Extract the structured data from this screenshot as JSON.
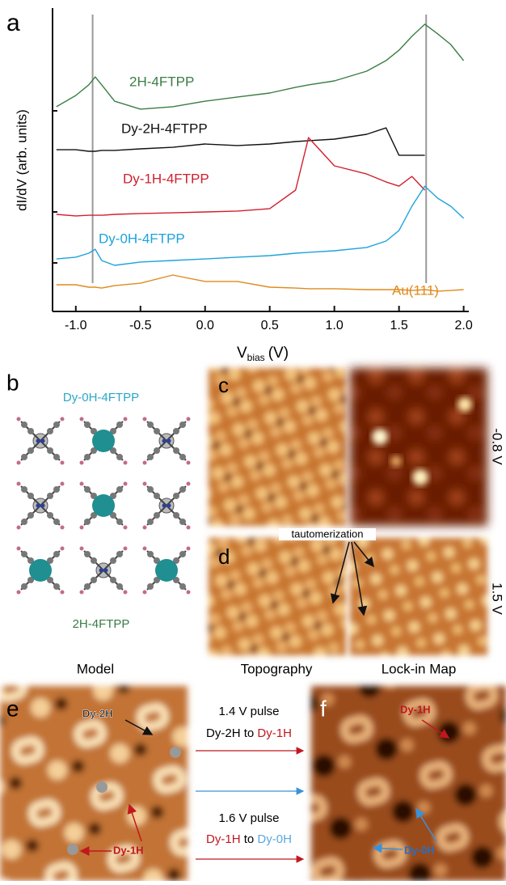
{
  "chart_data": {
    "type": "line",
    "panel": "a",
    "ylabel": "dI/dV (arb. units)",
    "xlabel": {
      "symbol": "V",
      "subscript": "bias",
      "unit": "(V)"
    },
    "x": [
      -1.15,
      -1.0,
      -0.9,
      -0.85,
      -0.8,
      -0.7,
      -0.5,
      -0.25,
      0,
      0.25,
      0.5,
      0.7,
      0.8,
      1.0,
      1.25,
      1.4,
      1.5,
      1.6,
      1.7,
      1.8,
      1.9,
      2.0
    ],
    "series": [
      {
        "name": "2H-4FTPP",
        "color": "#3a7d44",
        "values": [
          6.75,
          7.12,
          7.47,
          7.73,
          7.47,
          6.93,
          6.67,
          6.75,
          6.93,
          7.07,
          7.2,
          7.39,
          7.47,
          7.6,
          7.92,
          8.27,
          8.61,
          9.07,
          9.47,
          9.15,
          8.8,
          8.27
        ]
      },
      {
        "name": "Dy-2H-4FTPP",
        "color": "#111111",
        "values": [
          5.33,
          5.33,
          5.28,
          5.28,
          5.31,
          5.31,
          5.36,
          5.41,
          5.52,
          5.47,
          5.52,
          5.6,
          5.63,
          5.68,
          5.84,
          6.05,
          5.15,
          5.15,
          5.15,
          null,
          null,
          null
        ]
      },
      {
        "name": "Dy-1H-4FTPP",
        "color": "#d0202e",
        "values": [
          3.2,
          3.15,
          3.17,
          3.17,
          3.17,
          3.2,
          3.23,
          3.25,
          3.28,
          3.31,
          3.39,
          4.0,
          5.73,
          4.8,
          4.53,
          4.27,
          4.13,
          4.45,
          4.0,
          null,
          null,
          null
        ]
      },
      {
        "name": "Dy-0H-4FTPP",
        "color": "#1ea3dc",
        "values": [
          1.73,
          1.79,
          1.92,
          2.05,
          1.68,
          1.52,
          1.63,
          1.68,
          1.73,
          1.79,
          1.84,
          1.92,
          1.95,
          2.0,
          2.11,
          2.32,
          2.67,
          3.47,
          4.13,
          3.73,
          3.47,
          3.07
        ]
      },
      {
        "name": "Au(111)",
        "color": "#e08a1e",
        "values": [
          0.88,
          0.88,
          0.8,
          0.8,
          0.77,
          0.85,
          0.93,
          1.2,
          0.99,
          0.99,
          0.8,
          0.77,
          0.75,
          0.75,
          0.72,
          0.72,
          0.72,
          0.69,
          0.72,
          0.67,
          0.69,
          0.72
        ]
      }
    ],
    "xlim": [
      -1.18,
      2.04
    ],
    "ylim": [
      0,
      10
    ],
    "xticks": [
      {
        "value": -1,
        "label": "-1.0"
      },
      -0.5,
      {
        "value": 0,
        "label": "0.0"
      },
      0.5,
      {
        "value": 1,
        "label": "1.0"
      },
      1.5,
      {
        "value": 2,
        "label": "2.0"
      }
    ],
    "vlines": [
      -0.87,
      1.71
    ],
    "vline_color": "#999999"
  },
  "panels": {
    "b": {
      "letter": "b",
      "top_label": "Dy-0H-4FTPP",
      "bottom_label": "2H-4FTPP",
      "caption": "Model"
    },
    "c": {
      "letter": "c",
      "bias": "-0.8 V"
    },
    "d": {
      "letter": "d",
      "bias": "1.5 V",
      "annotation": "tautomerization"
    },
    "captions": [
      "Topography",
      "Lock-in Map"
    ],
    "e": {
      "letter": "e",
      "label_top": "Dy-2H",
      "label_bottom": "Dy-1H"
    },
    "f": {
      "letter": "f",
      "label_top": "Dy-1H",
      "label_bottom": "Dy-0H"
    },
    "pulses": [
      {
        "title": "1.4 V pulse",
        "from": "Dy-2H",
        "to": "to",
        "target": "Dy-1H"
      },
      {
        "title": "1.6 V pulse",
        "from": "Dy-1H",
        "to": "to",
        "target": "Dy-0H"
      }
    ]
  }
}
